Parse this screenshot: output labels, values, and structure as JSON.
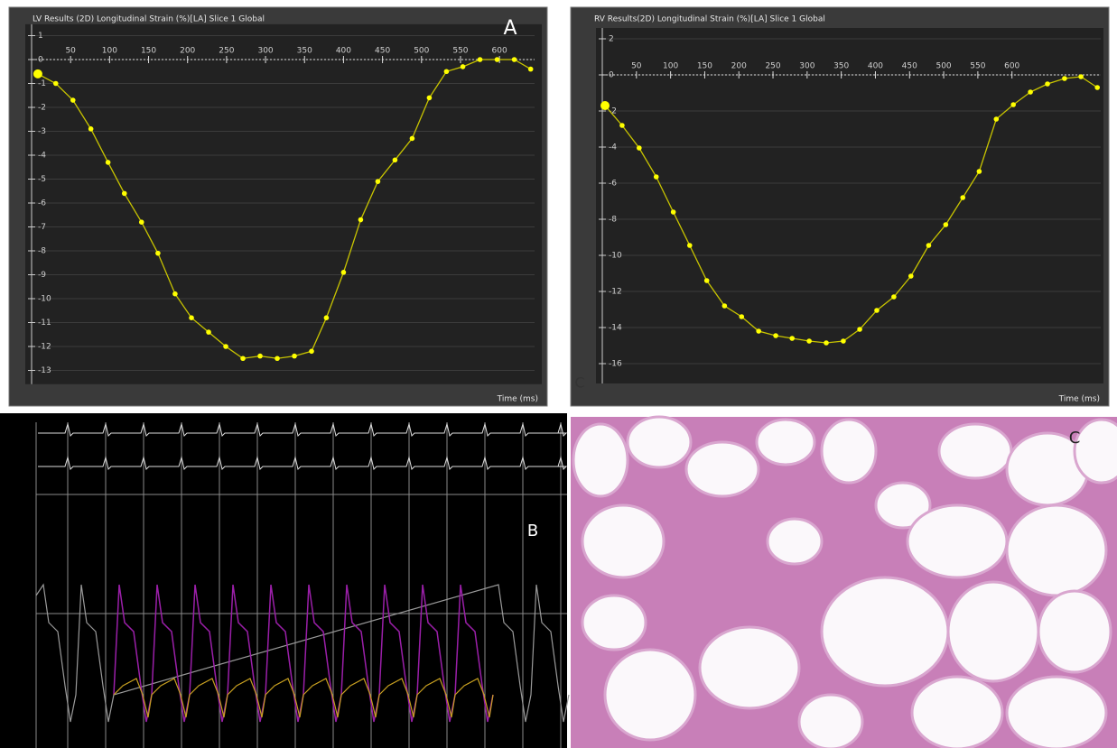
{
  "chart_data": [
    {
      "type": "line",
      "title": "LV Results (2D) Longitudinal Strain (%)[LA] Slice 1 Global",
      "annotation": "A",
      "x_label": "Time (ms)",
      "x": [
        8,
        31,
        53,
        76,
        98,
        119,
        141,
        162,
        184,
        205,
        227,
        249,
        271,
        293,
        315,
        337,
        359,
        378,
        400,
        422,
        444,
        466,
        488,
        510,
        532,
        553,
        575,
        597,
        619,
        640
      ],
      "values": [
        -0.6,
        -1.0,
        -1.7,
        -2.9,
        -4.3,
        -5.6,
        -6.8,
        -8.1,
        -9.8,
        -10.8,
        -11.4,
        -12.0,
        -12.5,
        -12.4,
        -12.5,
        -12.4,
        -12.2,
        -10.8,
        -8.9,
        -6.7,
        -5.1,
        -4.2,
        -3.3,
        -1.6,
        -0.5,
        -0.3,
        0.0,
        0.0,
        0.0,
        -0.4
      ],
      "color": "#ffff00",
      "line_color": "#c8c400",
      "xlim": [
        0,
        645
      ],
      "xticks": [
        50,
        100,
        150,
        200,
        250,
        300,
        350,
        400,
        450,
        500,
        550,
        600
      ],
      "ylim": [
        -13.5,
        1.4
      ],
      "yticks": [
        1,
        0,
        -1,
        -2,
        -3,
        -4,
        -5,
        -6,
        -7,
        -8,
        -9,
        -10,
        -11,
        -12,
        -13
      ],
      "grid": true
    },
    {
      "type": "line",
      "title": "RV Results(2D) Longitudinal Strain (%)[LA] Slice 1 Global",
      "annotation": "C",
      "x_label": "Time (ms)",
      "x": [
        4,
        29,
        54,
        79,
        104,
        128,
        153,
        179,
        204,
        229,
        254,
        278,
        303,
        328,
        353,
        377,
        402,
        427,
        452,
        478,
        503,
        528,
        552,
        577,
        602,
        627,
        652,
        677,
        701,
        725
      ],
      "values": [
        -1.7,
        -2.8,
        -4.05,
        -5.65,
        -7.6,
        -9.45,
        -11.4,
        -12.8,
        -13.4,
        -14.2,
        -14.45,
        -14.6,
        -14.75,
        -14.85,
        -14.75,
        -14.1,
        -13.05,
        -12.3,
        -11.15,
        -9.45,
        -8.3,
        -6.8,
        -5.35,
        -2.45,
        -1.65,
        -0.95,
        -0.5,
        -0.2,
        -0.1,
        -0.7
      ],
      "color": "#ffff00",
      "line_color": "#c8c400",
      "xlim": [
        0,
        730
      ],
      "xticks": [
        50,
        100,
        150,
        200,
        250,
        300,
        350,
        400,
        450,
        500,
        550,
        600
      ],
      "ylim": [
        -17,
        2.5
      ],
      "yticks": [
        2,
        0,
        -2,
        -4,
        -6,
        -8,
        -10,
        -12,
        -14,
        -16
      ],
      "grid": true
    }
  ],
  "panels": {
    "b": {
      "label": "B"
    },
    "c": {
      "label": "C"
    }
  }
}
